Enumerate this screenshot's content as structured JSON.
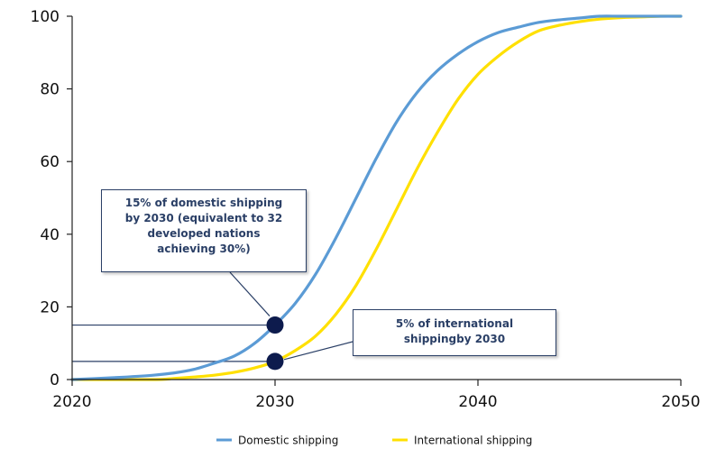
{
  "chart_data": {
    "type": "line",
    "title": "",
    "xlabel": "",
    "ylabel": "",
    "xlim": [
      2020,
      2050
    ],
    "ylim": [
      0,
      100
    ],
    "x_ticks": [
      2020,
      2030,
      2040,
      2050
    ],
    "y_ticks": [
      0,
      20,
      40,
      60,
      80,
      100
    ],
    "grid": false,
    "legend_position": "bottom",
    "series": [
      {
        "name": "Domestic shipping",
        "color": "#5b9bd5",
        "x": [
          2020,
          2022,
          2023,
          2024,
          2025,
          2026,
          2027,
          2028,
          2029,
          2030,
          2031,
          2032,
          2033,
          2034,
          2035,
          2036,
          2037,
          2038,
          2039,
          2040,
          2041,
          2042,
          2043,
          2044,
          2045,
          2046,
          2047,
          2048,
          2049,
          2050
        ],
        "values": [
          0,
          0.5,
          0.8,
          1.2,
          1.8,
          2.8,
          4.5,
          6.5,
          10,
          15,
          21,
          29,
          39,
          50,
          61,
          71,
          79,
          85,
          89.5,
          93,
          95.5,
          97,
          98.3,
          99,
          99.5,
          100,
          100,
          100,
          100,
          100
        ]
      },
      {
        "name": "International shipping",
        "color": "#ffe000",
        "x": [
          2020,
          2024,
          2025,
          2026,
          2027,
          2028,
          2029,
          2030,
          2031,
          2032,
          2033,
          2034,
          2035,
          2036,
          2037,
          2038,
          2039,
          2040,
          2041,
          2042,
          2043,
          2044,
          2045,
          2046,
          2047,
          2048,
          2049,
          2050
        ],
        "values": [
          0,
          0,
          0.3,
          0.7,
          1.2,
          2,
          3.2,
          5,
          8,
          12,
          18,
          26,
          36,
          47,
          58,
          68,
          77,
          84,
          89,
          93,
          96,
          97.5,
          98.5,
          99.2,
          99.6,
          99.8,
          100,
          100
        ]
      }
    ],
    "highlight_points": [
      {
        "series": "Domestic shipping",
        "x": 2030,
        "y": 15
      },
      {
        "series": "International shipping",
        "x": 2030,
        "y": 5
      }
    ],
    "annotations": [
      {
        "id": "domestic",
        "lines": [
          "15% of domestic shipping",
          "by 2030 (equivalent to 32",
          "developed nations",
          "achieving 30%)"
        ]
      },
      {
        "id": "international",
        "lines": [
          "5% of international",
          "shippingby 2030"
        ]
      }
    ],
    "point_color": "#0d1b4d",
    "annotation_color": "#2a3f66"
  }
}
